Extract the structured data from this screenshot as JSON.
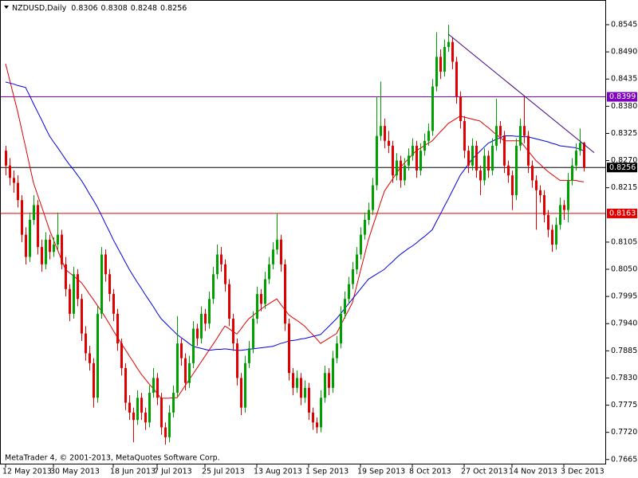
{
  "chart_data": {
    "type": "candlestick",
    "title": "NZDUSD,Daily",
    "footer": "MetaTrader 4, © 2001-2013, MetaQuotes Software Corp.",
    "up_color": "#00a000",
    "down_color": "#e00000",
    "ylim": [
      0.7655,
      0.8595
    ],
    "yticks": [
      0.8545,
      {
        "value": 0.849,
        "label": "0.8490"
      },
      0.8435,
      {
        "value": 0.838,
        "label": "0.8380"
      },
      0.8325,
      {
        "value": 0.827,
        "label": "0.8270"
      },
      0.8215,
      0.8105,
      {
        "value": 0.805,
        "label": "0.8050"
      },
      0.7995,
      {
        "value": 0.794,
        "label": "0.7940"
      },
      0.7885,
      {
        "value": 0.783,
        "label": "0.7830"
      },
      0.7775,
      {
        "value": 0.772,
        "label": "0.7720"
      },
      0.7665
    ],
    "categories": [
      "12 May 2013",
      null,
      null,
      null,
      null,
      null,
      null,
      null,
      null,
      null,
      null,
      null,
      "30 May 2013",
      null,
      null,
      null,
      null,
      null,
      null,
      null,
      null,
      null,
      null,
      null,
      null,
      null,
      null,
      "18 Jun 2013",
      null,
      null,
      null,
      null,
      null,
      null,
      null,
      null,
      null,
      null,
      "7 Jul 2013",
      null,
      null,
      null,
      null,
      null,
      null,
      null,
      null,
      null,
      null,
      null,
      "25 Jul 2013",
      null,
      null,
      null,
      null,
      null,
      null,
      null,
      null,
      null,
      null,
      null,
      null,
      "13 Aug 2013",
      null,
      null,
      null,
      null,
      null,
      null,
      null,
      null,
      null,
      null,
      null,
      null,
      "1 Sep 2013",
      null,
      null,
      null,
      null,
      null,
      null,
      null,
      null,
      null,
      null,
      null,
      null,
      "19 Sep 2013",
      null,
      null,
      null,
      null,
      null,
      null,
      null,
      null,
      null,
      null,
      null,
      null,
      "8 Oct 2013",
      null,
      null,
      null,
      null,
      null,
      null,
      null,
      null,
      null,
      null,
      null,
      null,
      "27 Oct 2013",
      null,
      null,
      null,
      null,
      null,
      null,
      null,
      null,
      null,
      null,
      null,
      "14 Nov 2013",
      null,
      null,
      null,
      null,
      null,
      null,
      null,
      null,
      null,
      null,
      null,
      null,
      "3 Dec 2013",
      null,
      null,
      null,
      null,
      null
    ],
    "ohlc": [
      [
        0.829,
        0.83,
        0.824,
        0.826
      ],
      [
        0.826,
        0.8275,
        0.822,
        0.8235
      ],
      [
        0.8235,
        0.825,
        0.8205,
        0.8225
      ],
      [
        0.8225,
        0.824,
        0.8175,
        0.819
      ],
      [
        0.819,
        0.82,
        0.8105,
        0.812
      ],
      [
        0.812,
        0.8135,
        0.806,
        0.8075
      ],
      [
        0.8075,
        0.8165,
        0.8065,
        0.815
      ],
      [
        0.815,
        0.82,
        0.814,
        0.818
      ],
      [
        0.818,
        0.819,
        0.808,
        0.8095
      ],
      [
        0.8095,
        0.811,
        0.8045,
        0.806
      ],
      [
        0.806,
        0.8125,
        0.805,
        0.811
      ],
      [
        0.811,
        0.812,
        0.807,
        0.8085
      ],
      [
        0.8085,
        0.8115,
        0.8075,
        0.81
      ],
      [
        0.81,
        0.8165,
        0.809,
        0.812
      ],
      [
        0.812,
        0.813,
        0.805,
        0.806
      ],
      [
        0.806,
        0.8075,
        0.7995,
        0.801
      ],
      [
        0.801,
        0.802,
        0.7945,
        0.796
      ],
      [
        0.796,
        0.8055,
        0.795,
        0.804
      ],
      [
        0.804,
        0.805,
        0.7975,
        0.799
      ],
      [
        0.799,
        0.8,
        0.7905,
        0.792
      ],
      [
        0.792,
        0.7935,
        0.7865,
        0.788
      ],
      [
        0.788,
        0.7895,
        0.7845,
        0.786
      ],
      [
        0.786,
        0.787,
        0.777,
        0.779
      ],
      [
        0.779,
        0.7975,
        0.778,
        0.796
      ],
      [
        0.796,
        0.8095,
        0.795,
        0.808
      ],
      [
        0.808,
        0.809,
        0.8025,
        0.804
      ],
      [
        0.804,
        0.805,
        0.7985,
        0.8
      ],
      [
        0.8,
        0.801,
        0.7945,
        0.796
      ],
      [
        0.796,
        0.797,
        0.7885,
        0.79
      ],
      [
        0.79,
        0.791,
        0.7835,
        0.785
      ],
      [
        0.785,
        0.786,
        0.7765,
        0.778
      ],
      [
        0.778,
        0.7795,
        0.7745,
        0.776
      ],
      [
        0.776,
        0.777,
        0.77,
        0.7745
      ],
      [
        0.7745,
        0.7805,
        0.7735,
        0.779
      ],
      [
        0.779,
        0.78,
        0.7745,
        0.776
      ],
      [
        0.776,
        0.777,
        0.7725,
        0.774
      ],
      [
        0.774,
        0.7815,
        0.773,
        0.78
      ],
      [
        0.78,
        0.785,
        0.779,
        0.783
      ],
      [
        0.783,
        0.784,
        0.7775,
        0.779
      ],
      [
        0.779,
        0.78,
        0.7715,
        0.773
      ],
      [
        0.773,
        0.774,
        0.7695,
        0.771
      ],
      [
        0.771,
        0.7775,
        0.77,
        0.776
      ],
      [
        0.776,
        0.7815,
        0.775,
        0.78
      ],
      [
        0.78,
        0.7955,
        0.779,
        0.79
      ],
      [
        0.79,
        0.791,
        0.7855,
        0.787
      ],
      [
        0.787,
        0.788,
        0.7805,
        0.782
      ],
      [
        0.782,
        0.7875,
        0.781,
        0.786
      ],
      [
        0.786,
        0.7945,
        0.785,
        0.793
      ],
      [
        0.793,
        0.794,
        0.7895,
        0.791
      ],
      [
        0.791,
        0.7975,
        0.79,
        0.796
      ],
      [
        0.796,
        0.797,
        0.7925,
        0.794
      ],
      [
        0.794,
        0.8005,
        0.793,
        0.799
      ],
      [
        0.799,
        0.8055,
        0.798,
        0.804
      ],
      [
        0.804,
        0.81,
        0.803,
        0.808
      ],
      [
        0.808,
        0.8095,
        0.8045,
        0.806
      ],
      [
        0.806,
        0.807,
        0.8005,
        0.802
      ],
      [
        0.802,
        0.803,
        0.7935,
        0.795
      ],
      [
        0.795,
        0.796,
        0.7885,
        0.79
      ],
      [
        0.79,
        0.791,
        0.7815,
        0.783
      ],
      [
        0.783,
        0.784,
        0.7755,
        0.777
      ],
      [
        0.777,
        0.7875,
        0.776,
        0.786
      ],
      [
        0.786,
        0.7905,
        0.785,
        0.789
      ],
      [
        0.789,
        0.7965,
        0.788,
        0.795
      ],
      [
        0.795,
        0.8015,
        0.794,
        0.8
      ],
      [
        0.8,
        0.801,
        0.7965,
        0.798
      ],
      [
        0.798,
        0.8045,
        0.797,
        0.803
      ],
      [
        0.803,
        0.8075,
        0.802,
        0.806
      ],
      [
        0.806,
        0.8105,
        0.805,
        0.809
      ],
      [
        0.809,
        0.8163,
        0.808,
        0.811
      ],
      [
        0.811,
        0.812,
        0.8045,
        0.806
      ],
      [
        0.806,
        0.807,
        0.7925,
        0.794
      ],
      [
        0.794,
        0.795,
        0.7825,
        0.784
      ],
      [
        0.784,
        0.785,
        0.7795,
        0.781
      ],
      [
        0.781,
        0.7845,
        0.78,
        0.783
      ],
      [
        0.783,
        0.784,
        0.7775,
        0.779
      ],
      [
        0.779,
        0.7825,
        0.778,
        0.781
      ],
      [
        0.781,
        0.782,
        0.7745,
        0.776
      ],
      [
        0.776,
        0.777,
        0.7725,
        0.774
      ],
      [
        0.774,
        0.775,
        0.7718,
        0.773
      ],
      [
        0.773,
        0.7805,
        0.772,
        0.779
      ],
      [
        0.779,
        0.7855,
        0.778,
        0.784
      ],
      [
        0.784,
        0.785,
        0.7795,
        0.781
      ],
      [
        0.781,
        0.7885,
        0.78,
        0.787
      ],
      [
        0.787,
        0.7915,
        0.786,
        0.79
      ],
      [
        0.79,
        0.7975,
        0.789,
        0.796
      ],
      [
        0.796,
        0.8005,
        0.795,
        0.799
      ],
      [
        0.799,
        0.8035,
        0.798,
        0.802
      ],
      [
        0.802,
        0.8065,
        0.801,
        0.805
      ],
      [
        0.805,
        0.8095,
        0.804,
        0.808
      ],
      [
        0.808,
        0.8135,
        0.807,
        0.812
      ],
      [
        0.812,
        0.8165,
        0.811,
        0.815
      ],
      [
        0.815,
        0.8185,
        0.814,
        0.817
      ],
      [
        0.817,
        0.8235,
        0.816,
        0.822
      ],
      [
        0.822,
        0.84,
        0.821,
        0.832
      ],
      [
        0.832,
        0.843,
        0.831,
        0.834
      ],
      [
        0.834,
        0.8355,
        0.8295,
        0.831
      ],
      [
        0.831,
        0.833,
        0.8285,
        0.83
      ],
      [
        0.83,
        0.831,
        0.8225,
        0.824
      ],
      [
        0.824,
        0.8285,
        0.823,
        0.827
      ],
      [
        0.827,
        0.828,
        0.8215,
        0.823
      ],
      [
        0.823,
        0.8275,
        0.822,
        0.826
      ],
      [
        0.826,
        0.8295,
        0.825,
        0.828
      ],
      [
        0.828,
        0.8315,
        0.827,
        0.83
      ],
      [
        0.83,
        0.831,
        0.8235,
        0.825
      ],
      [
        0.825,
        0.8305,
        0.824,
        0.829
      ],
      [
        0.829,
        0.8325,
        0.828,
        0.831
      ],
      [
        0.831,
        0.8345,
        0.83,
        0.833
      ],
      [
        0.833,
        0.8435,
        0.832,
        0.842
      ],
      [
        0.842,
        0.853,
        0.841,
        0.848
      ],
      [
        0.848,
        0.8495,
        0.8435,
        0.845
      ],
      [
        0.845,
        0.8515,
        0.844,
        0.85
      ],
      [
        0.85,
        0.8545,
        0.849,
        0.851
      ],
      [
        0.851,
        0.852,
        0.8455,
        0.847
      ],
      [
        0.847,
        0.848,
        0.8385,
        0.84
      ],
      [
        0.84,
        0.841,
        0.8335,
        0.835
      ],
      [
        0.835,
        0.836,
        0.8275,
        0.829
      ],
      [
        0.829,
        0.83,
        0.8245,
        0.826
      ],
      [
        0.826,
        0.8315,
        0.825,
        0.83
      ],
      [
        0.83,
        0.831,
        0.8235,
        0.825
      ],
      [
        0.825,
        0.826,
        0.82,
        0.823
      ],
      [
        0.823,
        0.8295,
        0.822,
        0.828
      ],
      [
        0.828,
        0.829,
        0.8235,
        0.825
      ],
      [
        0.825,
        0.8315,
        0.824,
        0.83
      ],
      [
        0.83,
        0.8395,
        0.829,
        0.834
      ],
      [
        0.834,
        0.835,
        0.8305,
        0.832
      ],
      [
        0.832,
        0.833,
        0.8245,
        0.826
      ],
      [
        0.826,
        0.827,
        0.8225,
        0.824
      ],
      [
        0.824,
        0.825,
        0.817,
        0.82
      ],
      [
        0.82,
        0.8315,
        0.819,
        0.83
      ],
      [
        0.83,
        0.8355,
        0.829,
        0.834
      ],
      [
        0.834,
        0.84,
        0.8305,
        0.832
      ],
      [
        0.832,
        0.833,
        0.8245,
        0.826
      ],
      [
        0.826,
        0.827,
        0.8215,
        0.823
      ],
      [
        0.823,
        0.824,
        0.813,
        0.821
      ],
      [
        0.821,
        0.822,
        0.8185,
        0.82
      ],
      [
        0.82,
        0.821,
        0.8145,
        0.816
      ],
      [
        0.816,
        0.817,
        0.8115,
        0.813
      ],
      [
        0.813,
        0.814,
        0.8085,
        0.81
      ],
      [
        0.81,
        0.8155,
        0.809,
        0.814
      ],
      [
        0.814,
        0.8195,
        0.813,
        0.818
      ],
      [
        0.818,
        0.819,
        0.815,
        0.817
      ],
      [
        0.817,
        0.8245,
        0.8145,
        0.823
      ],
      [
        0.823,
        0.8275,
        0.822,
        0.826
      ],
      [
        0.826,
        0.8305,
        0.825,
        0.829
      ],
      [
        0.829,
        0.8335,
        0.828,
        0.8306
      ],
      [
        0.8306,
        0.8308,
        0.8248,
        0.8256
      ]
    ],
    "series": [
      {
        "color": "#e00000",
        "values": [
          0.8466,
          0.8434,
          0.8402,
          0.837,
          0.8334,
          0.8298,
          0.8261,
          0.8225,
          0.8201,
          0.8178,
          0.8154,
          0.813,
          0.811,
          0.809,
          0.807,
          0.805,
          0.8043,
          0.8037,
          0.803,
          0.8023,
          0.8012,
          0.8,
          0.7989,
          0.7977,
          0.7966,
          0.7953,
          0.794,
          0.7926,
          0.7913,
          0.79,
          0.7888,
          0.7875,
          0.7863,
          0.785,
          0.7838,
          0.7828,
          0.7818,
          0.7809,
          0.7799,
          0.7789,
          0.7789,
          0.7789,
          0.779,
          0.779,
          0.7802,
          0.7814,
          0.7826,
          0.7838,
          0.785,
          0.7862,
          0.7874,
          0.7886,
          0.7898,
          0.791,
          0.7923,
          0.7935,
          0.793,
          0.7924,
          0.7919,
          0.7929,
          0.794,
          0.795,
          0.7956,
          0.7963,
          0.7969,
          0.7975,
          0.798,
          0.7985,
          0.799,
          0.7979,
          0.7969,
          0.7958,
          0.7952,
          0.7947,
          0.7941,
          0.7935,
          0.7926,
          0.7918,
          0.7909,
          0.79,
          0.7905,
          0.791,
          0.7915,
          0.792,
          0.7936,
          0.7952,
          0.7967,
          0.7983,
          0.8015,
          0.8047,
          0.8078,
          0.811,
          0.8135,
          0.8159,
          0.8184,
          0.8208,
          0.822,
          0.8232,
          0.8244,
          0.8256,
          0.8265,
          0.8273,
          0.8282,
          0.829,
          0.8295,
          0.83,
          0.8305,
          0.831,
          0.8319,
          0.8328,
          0.8336,
          0.8345,
          0.835,
          0.8355,
          0.836,
          0.8358,
          0.8356,
          0.8354,
          0.8352,
          0.835,
          0.8343,
          0.8337,
          0.833,
          0.8323,
          0.8317,
          0.831,
          0.831,
          0.831,
          0.831,
          0.831,
          0.83,
          0.829,
          0.828,
          0.827,
          0.8263,
          0.8255,
          0.8248,
          0.8242,
          0.8236,
          0.823,
          0.823,
          0.823,
          0.823,
          0.823,
          0.8228,
          0.8227
        ]
      },
      {
        "color": "#0000e0",
        "values": [
          0.8429,
          0.8427,
          0.8425,
          0.8422,
          0.842,
          0.8418,
          0.8402,
          0.8385,
          0.8369,
          0.8353,
          0.8336,
          0.832,
          0.8308,
          0.8297,
          0.8285,
          0.8273,
          0.8262,
          0.8252,
          0.8241,
          0.823,
          0.8217,
          0.8203,
          0.819,
          0.8176,
          0.816,
          0.8143,
          0.8127,
          0.811,
          0.8095,
          0.808,
          0.8065,
          0.805,
          0.8037,
          0.8024,
          0.8012,
          0.7999,
          0.7987,
          0.7975,
          0.7962,
          0.795,
          0.7942,
          0.7934,
          0.7926,
          0.7918,
          0.7912,
          0.7906,
          0.79,
          0.7894,
          0.7892,
          0.789,
          0.7888,
          0.7886,
          0.7887,
          0.7888,
          0.7888,
          0.7889,
          0.7888,
          0.7887,
          0.7886,
          0.7886,
          0.7887,
          0.7888,
          0.7889,
          0.789,
          0.7891,
          0.7892,
          0.7893,
          0.7894,
          0.7897,
          0.79,
          0.7902,
          0.7905,
          0.7906,
          0.7907,
          0.7909,
          0.791,
          0.7912,
          0.7914,
          0.7916,
          0.7918,
          0.7926,
          0.7934,
          0.7942,
          0.795,
          0.796,
          0.797,
          0.798,
          0.799,
          0.8,
          0.801,
          0.802,
          0.803,
          0.8035,
          0.804,
          0.8045,
          0.805,
          0.8058,
          0.8065,
          0.8073,
          0.808,
          0.8086,
          0.8092,
          0.8097,
          0.8103,
          0.811,
          0.8116,
          0.8123,
          0.813,
          0.8146,
          0.8161,
          0.8177,
          0.8192,
          0.8208,
          0.8224,
          0.824,
          0.8251,
          0.8262,
          0.8273,
          0.8281,
          0.8289,
          0.8297,
          0.8305,
          0.8309,
          0.8313,
          0.8316,
          0.832,
          0.832,
          0.832,
          0.8319,
          0.8319,
          0.8318,
          0.8318,
          0.8316,
          0.8314,
          0.8312,
          0.831,
          0.8308,
          0.8305,
          0.8303,
          0.83,
          0.8299,
          0.8298,
          0.8297,
          0.8296,
          0.8293,
          0.829
        ]
      }
    ],
    "hlines": [
      {
        "value": 0.8399,
        "color": "#8000c0"
      },
      {
        "value": 0.8256,
        "color": "#000000"
      },
      {
        "value": 0.8163,
        "color": "#e00000"
      }
    ],
    "trendline": {
      "start": 0.8526,
      "end": 0.8286,
      "color": "#400080"
    }
  }
}
